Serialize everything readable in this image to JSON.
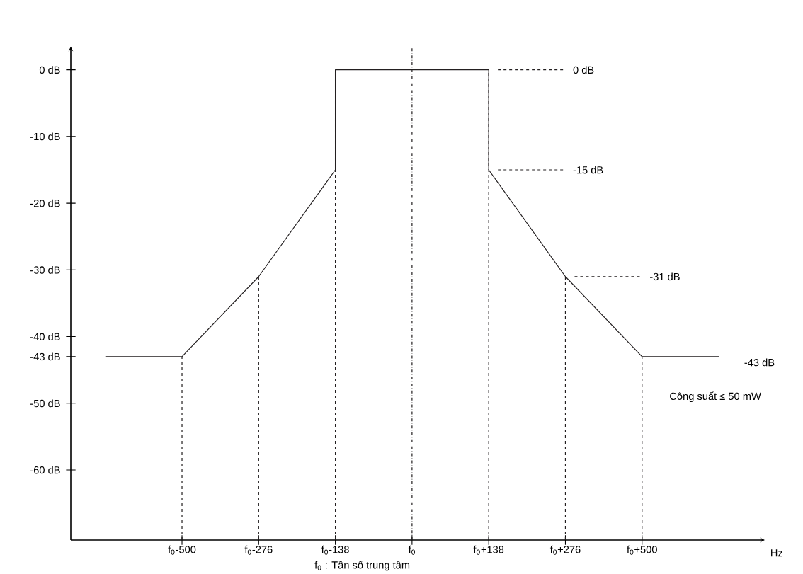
{
  "chart_data": {
    "type": "line",
    "xlabel": "Hz",
    "categories": [
      null,
      "f$_{0}$-500",
      "f$_{0}$-276",
      "f$_{0}$-138",
      "f$_{0}$",
      "f$_{0}$+138",
      "f$_{0}$+276",
      "f$_{0}$+500",
      null
    ],
    "series": [
      {
        "color": "#231f20",
        "values": [
          -43,
          -43,
          -31,
          -15,
          null,
          -15,
          -31,
          -43,
          -43
        ]
      },
      {
        "color": "#231f20",
        "x": [
          "f$_{0}$-138",
          "f$_{0}$-138",
          "f$_{0}$+138",
          "f$_{0}$+138"
        ],
        "values": [
          -15,
          0,
          0,
          -15
        ]
      }
    ],
    "ylim": [
      -70.5,
      3.5
    ],
    "yticks": [
      {
        "value": 0,
        "label": "0 dB"
      },
      {
        "value": -10,
        "label": "-10 dB"
      },
      {
        "value": -20,
        "label": "-20 dB"
      },
      {
        "value": -30,
        "label": "-30 dB"
      },
      {
        "value": -40,
        "label": "-40 dB"
      },
      {
        "value": -43,
        "label": "-43 dB"
      },
      {
        "value": -50,
        "label": "-50 dB"
      },
      {
        "value": -60,
        "label": "-60 dB"
      }
    ],
    "ref_lines": [
      {
        "axis": "x",
        "value": "f$_{0}$-500",
        "line_style": "dashed"
      },
      {
        "axis": "x",
        "value": "f$_{0}$-276",
        "line_style": "dashed"
      },
      {
        "axis": "x",
        "value": "f$_{0}$-138",
        "line_style": "dashed"
      },
      {
        "axis": "x",
        "value": "f$_{0}$",
        "line_style": "dashdot"
      },
      {
        "axis": "x",
        "value": "f$_{0}$+138",
        "line_style": "dashed"
      },
      {
        "axis": "x",
        "value": "f$_{0}$+276",
        "line_style": "dashed"
      },
      {
        "axis": "x",
        "value": "f$_{0}$+500",
        "line_style": "dashed"
      },
      {
        "axis": "y",
        "value": 0,
        "label": "0 dB",
        "line_style": "dashed"
      },
      {
        "axis": "y",
        "value": -15,
        "label": "-15 dB",
        "line_style": "dashed"
      },
      {
        "axis": "y",
        "value": -31,
        "label": "-31 dB",
        "line_style": "dashed"
      }
    ],
    "annotations": [
      "-43 dB",
      "Công suất ≤ 50 mW",
      "f$_{0}$ : Tần số trung tâm"
    ],
    "grid": false,
    "marker": "none",
    "line_style": "solid"
  }
}
